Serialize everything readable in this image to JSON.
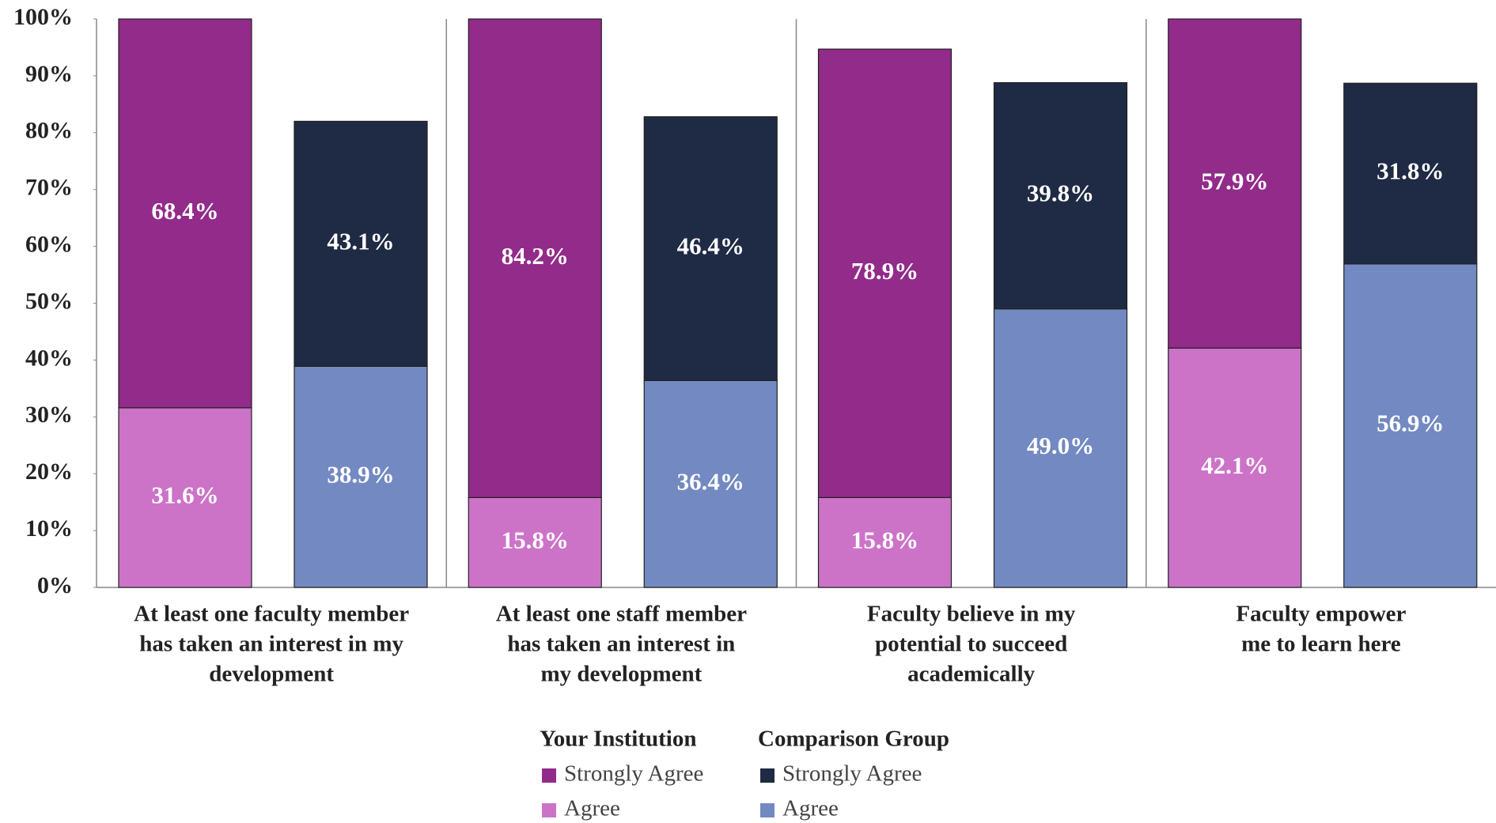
{
  "chart_data": {
    "type": "grouped-stacked-bar",
    "categories": [
      [
        "At least one faculty member",
        "has taken an interest in my",
        "development"
      ],
      [
        "At least one staff  member",
        "has taken  an interest in",
        "my development"
      ],
      [
        "Faculty believe in my",
        "potential to succeed",
        "academically"
      ],
      [
        "Faculty empower",
        "me to learn here"
      ]
    ],
    "groups": [
      {
        "name": "Your Institution",
        "series": [
          {
            "name": "Strongly Agree",
            "color": "#922b8a",
            "values": [
              68.4,
              84.2,
              78.9,
              57.9
            ],
            "value_labels": [
              "68.4%",
              "84.2%",
              "78.9%",
              "57.9%"
            ]
          },
          {
            "name": "Agree",
            "color": "#cc73c8",
            "values": [
              31.6,
              15.8,
              15.8,
              42.1
            ],
            "value_labels": [
              "31.6%",
              "15.8%",
              "15.8%",
              "42.1%"
            ]
          }
        ]
      },
      {
        "name": "Comparison Group",
        "series": [
          {
            "name": "Strongly Agree",
            "color": "#1f2a44",
            "values": [
              43.1,
              46.4,
              39.8,
              31.8
            ],
            "value_labels": [
              "43.1%",
              "46.4%",
              "39.8%",
              "31.8%"
            ]
          },
          {
            "name": "Agree",
            "color": "#7389c1",
            "values": [
              38.9,
              36.4,
              49.0,
              56.9
            ],
            "value_labels": [
              "38.9%",
              "36.4%",
              "49.0%",
              "56.9%"
            ]
          }
        ]
      }
    ],
    "ylim": [
      0,
      100
    ],
    "yticks": [
      {
        "value": 0,
        "label": "0%"
      },
      {
        "value": 10,
        "label": "10%"
      },
      {
        "value": 20,
        "label": "20%"
      },
      {
        "value": 30,
        "label": "30%"
      },
      {
        "value": 40,
        "label": "40%"
      },
      {
        "value": 50,
        "label": "50%"
      },
      {
        "value": 60,
        "label": "60%"
      },
      {
        "value": 70,
        "label": "70%"
      },
      {
        "value": 80,
        "label": "80%"
      },
      {
        "value": 90,
        "label": "90%"
      },
      {
        "value": 100,
        "label": "100%"
      }
    ],
    "grid": false,
    "legend": "bottom"
  }
}
